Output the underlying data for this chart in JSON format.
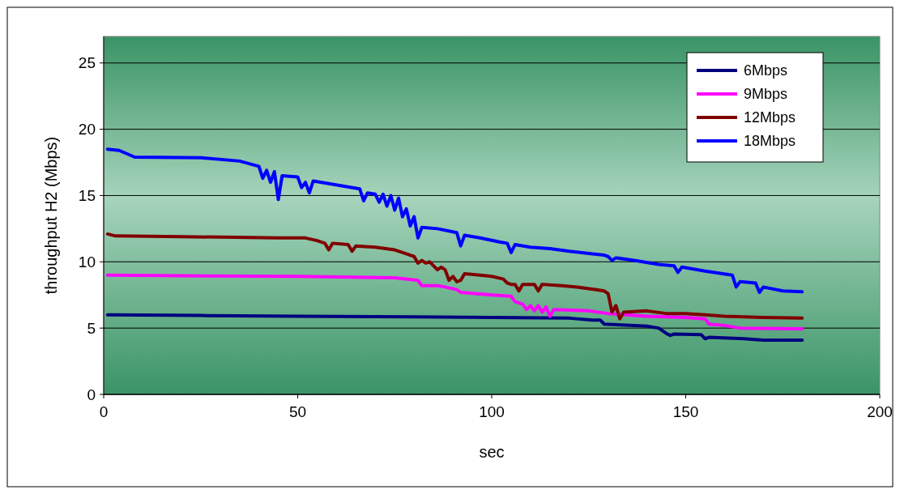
{
  "chart_data": {
    "type": "line",
    "xlabel": "sec",
    "ylabel": "throughput H2 (Mbps)",
    "xlim": [
      0,
      200
    ],
    "xticks": [
      0,
      50,
      100,
      150,
      200
    ],
    "ylim": [
      0,
      27
    ],
    "yticks": [
      0,
      5,
      10,
      15,
      20,
      25
    ],
    "grid": "y",
    "legend": "top right",
    "marker": "none",
    "line_style": "solid",
    "series": [
      {
        "name": "6Mbps",
        "color": "#000080",
        "x": [
          1,
          25,
          50,
          80,
          100,
          120,
          126,
          128,
          129,
          140,
          143,
          145,
          146,
          147,
          154,
          155,
          156,
          165,
          170,
          180
        ],
        "values": [
          6.0,
          5.95,
          5.9,
          5.85,
          5.8,
          5.75,
          5.6,
          5.6,
          5.3,
          5.15,
          5.0,
          4.6,
          4.45,
          4.55,
          4.5,
          4.2,
          4.3,
          4.2,
          4.1,
          4.1
        ]
      },
      {
        "name": "9Mbps",
        "color": "#ff00ff",
        "x": [
          1,
          20,
          50,
          75,
          81,
          82,
          86,
          88,
          91,
          92,
          100,
          105,
          106,
          108,
          109,
          110,
          111,
          112,
          113,
          114,
          115,
          116,
          125,
          130,
          140,
          150,
          155,
          156,
          160,
          164,
          180
        ],
        "values": [
          9.0,
          8.95,
          8.9,
          8.8,
          8.6,
          8.2,
          8.2,
          8.1,
          7.9,
          7.7,
          7.5,
          7.4,
          7.0,
          6.8,
          6.4,
          6.7,
          6.3,
          6.7,
          6.2,
          6.6,
          5.9,
          6.4,
          6.3,
          6.1,
          5.9,
          5.8,
          5.7,
          5.3,
          5.2,
          5.0,
          4.95
        ]
      },
      {
        "name": "12Mbps",
        "color": "#800000",
        "x": [
          1,
          3,
          20,
          45,
          52,
          55,
          57,
          58,
          59,
          63,
          64,
          65,
          70,
          75,
          78,
          80,
          81,
          82,
          83,
          84,
          85,
          86,
          87,
          88,
          89,
          90,
          91,
          92,
          93,
          97,
          100,
          103,
          104,
          105,
          106,
          107,
          108,
          111,
          112,
          113,
          118,
          122,
          127,
          129,
          130,
          131,
          132,
          133,
          134,
          140,
          145,
          150,
          155,
          160,
          170,
          180
        ],
        "values": [
          12.1,
          11.95,
          11.9,
          11.8,
          11.8,
          11.6,
          11.4,
          10.9,
          11.4,
          11.3,
          10.8,
          11.2,
          11.1,
          10.9,
          10.6,
          10.4,
          9.9,
          10.1,
          9.9,
          10.0,
          9.7,
          9.4,
          9.6,
          9.4,
          8.6,
          8.9,
          8.5,
          8.6,
          9.1,
          9.0,
          8.9,
          8.7,
          8.4,
          8.3,
          8.3,
          7.8,
          8.3,
          8.3,
          7.8,
          8.3,
          8.2,
          8.1,
          7.9,
          7.8,
          7.6,
          6.2,
          6.7,
          5.7,
          6.2,
          6.3,
          6.1,
          6.1,
          6.0,
          5.9,
          5.8,
          5.75
        ]
      },
      {
        "name": "18Mbps",
        "color": "#0000ff",
        "x": [
          1,
          4,
          8,
          25,
          35,
          40,
          41,
          42,
          43,
          44,
          45,
          46,
          50,
          51,
          52,
          53,
          54,
          58,
          62,
          66,
          67,
          68,
          70,
          71,
          72,
          73,
          74,
          75,
          76,
          77,
          78,
          79,
          80,
          81,
          82,
          86,
          91,
          92,
          93,
          97,
          102,
          104,
          105,
          106,
          110,
          115,
          120,
          126,
          129,
          130,
          131,
          132,
          137,
          143,
          147,
          148,
          149,
          155,
          162,
          163,
          164,
          168,
          169,
          170,
          175,
          180
        ],
        "values": [
          18.5,
          18.4,
          17.9,
          17.85,
          17.6,
          17.2,
          16.3,
          16.9,
          16.0,
          16.8,
          14.7,
          16.5,
          16.4,
          15.6,
          16.0,
          15.2,
          16.1,
          15.9,
          15.7,
          15.5,
          14.6,
          15.2,
          15.1,
          14.5,
          15.1,
          14.2,
          15.0,
          13.9,
          14.8,
          13.4,
          14.0,
          12.7,
          13.4,
          11.8,
          12.6,
          12.5,
          12.2,
          11.2,
          12.0,
          11.8,
          11.5,
          11.4,
          10.7,
          11.3,
          11.1,
          11.0,
          10.8,
          10.6,
          10.5,
          10.4,
          10.1,
          10.3,
          10.1,
          9.8,
          9.7,
          9.2,
          9.6,
          9.3,
          9.0,
          8.1,
          8.5,
          8.4,
          7.7,
          8.1,
          7.8,
          7.75
        ]
      }
    ]
  }
}
